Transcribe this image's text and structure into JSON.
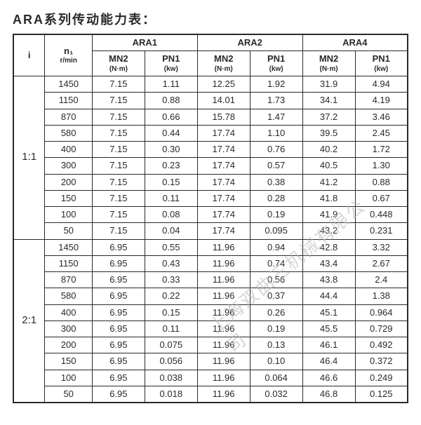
{
  "title": "ARA系列传动能力表：",
  "watermark": "上海双曲三机械有限公司",
  "header": {
    "i": "i",
    "n1_line1": "n₁",
    "n1_line2": "r/min",
    "groups": [
      "ARA1",
      "ARA2",
      "ARA4"
    ],
    "mn2_line1": "MN2",
    "mn2_line2": "(N·m)",
    "pn1_line1": "PN1",
    "pn1_line2": "(kw)"
  },
  "blocks": [
    {
      "ratio": "1:1",
      "rows": [
        {
          "n1": "1450",
          "a1m": "7.15",
          "a1p": "1.11",
          "a2m": "12.25",
          "a2p": "1.92",
          "a4m": "31.9",
          "a4p": "4.94"
        },
        {
          "n1": "1150",
          "a1m": "7.15",
          "a1p": "0.88",
          "a2m": "14.01",
          "a2p": "1.73",
          "a4m": "34.1",
          "a4p": "4.19"
        },
        {
          "n1": "870",
          "a1m": "7.15",
          "a1p": "0.66",
          "a2m": "15.78",
          "a2p": "1.47",
          "a4m": "37.2",
          "a4p": "3.46"
        },
        {
          "n1": "580",
          "a1m": "7.15",
          "a1p": "0.44",
          "a2m": "17.74",
          "a2p": "1.10",
          "a4m": "39.5",
          "a4p": "2.45"
        },
        {
          "n1": "400",
          "a1m": "7.15",
          "a1p": "0.30",
          "a2m": "17.74",
          "a2p": "0.76",
          "a4m": "40.2",
          "a4p": "1.72"
        },
        {
          "n1": "300",
          "a1m": "7.15",
          "a1p": "0.23",
          "a2m": "17.74",
          "a2p": "0.57",
          "a4m": "40.5",
          "a4p": "1.30"
        },
        {
          "n1": "200",
          "a1m": "7.15",
          "a1p": "0.15",
          "a2m": "17.74",
          "a2p": "0.38",
          "a4m": "41.2",
          "a4p": "0.88"
        },
        {
          "n1": "150",
          "a1m": "7.15",
          "a1p": "0.11",
          "a2m": "17.74",
          "a2p": "0.28",
          "a4m": "41.8",
          "a4p": "0.67"
        },
        {
          "n1": "100",
          "a1m": "7.15",
          "a1p": "0.08",
          "a2m": "17.74",
          "a2p": "0.19",
          "a4m": "41.9",
          "a4p": "0.448"
        },
        {
          "n1": "50",
          "a1m": "7.15",
          "a1p": "0.04",
          "a2m": "17.74",
          "a2p": "0.095",
          "a4m": "43.2",
          "a4p": "0.231"
        }
      ]
    },
    {
      "ratio": "2:1",
      "rows": [
        {
          "n1": "1450",
          "a1m": "6.95",
          "a1p": "0.55",
          "a2m": "11.96",
          "a2p": "0.94",
          "a4m": "42.8",
          "a4p": "3.32"
        },
        {
          "n1": "1150",
          "a1m": "6.95",
          "a1p": "0.43",
          "a2m": "11.96",
          "a2p": "0.74",
          "a4m": "43.4",
          "a4p": "2.67"
        },
        {
          "n1": "870",
          "a1m": "6.95",
          "a1p": "0.33",
          "a2m": "11.96",
          "a2p": "0.56",
          "a4m": "43.8",
          "a4p": "2.4"
        },
        {
          "n1": "580",
          "a1m": "6.95",
          "a1p": "0.22",
          "a2m": "11.96",
          "a2p": "0.37",
          "a4m": "44.4",
          "a4p": "1.38"
        },
        {
          "n1": "400",
          "a1m": "6.95",
          "a1p": "0.15",
          "a2m": "11.96",
          "a2p": "0.26",
          "a4m": "45.1",
          "a4p": "0.964"
        },
        {
          "n1": "300",
          "a1m": "6.95",
          "a1p": "0.11",
          "a2m": "11.96",
          "a2p": "0.19",
          "a4m": "45.5",
          "a4p": "0.729"
        },
        {
          "n1": "200",
          "a1m": "6.95",
          "a1p": "0.075",
          "a2m": "11.96",
          "a2p": "0.13",
          "a4m": "46.1",
          "a4p": "0.492"
        },
        {
          "n1": "150",
          "a1m": "6.95",
          "a1p": "0.056",
          "a2m": "11.96",
          "a2p": "0.10",
          "a4m": "46.4",
          "a4p": "0.372"
        },
        {
          "n1": "100",
          "a1m": "6.95",
          "a1p": "0.038",
          "a2m": "11.96",
          "a2p": "0.064",
          "a4m": "46.6",
          "a4p": "0.249"
        },
        {
          "n1": "50",
          "a1m": "6.95",
          "a1p": "0.018",
          "a2m": "11.96",
          "a2p": "0.032",
          "a4m": "46.8",
          "a4p": "0.125"
        }
      ]
    }
  ]
}
